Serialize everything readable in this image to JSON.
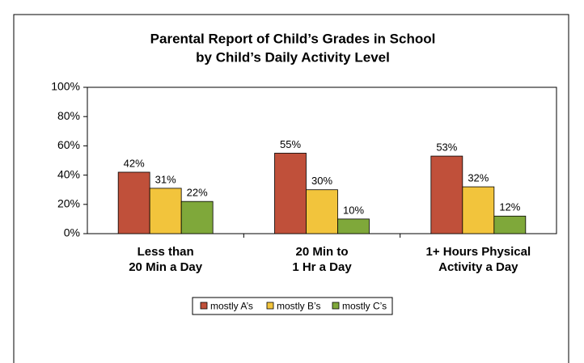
{
  "chart_data": {
    "type": "bar",
    "title": [
      "Parental Report of Child’s Grades in School",
      "by Child’s Daily Activity Level"
    ],
    "categories": [
      "Less than\n20 Min a Day",
      "20 Min to\n1 Hr a Day",
      "1+ Hours Physical\nActivity a Day"
    ],
    "series": [
      {
        "name": "mostly A’s",
        "color": "#c0503a",
        "values": [
          42,
          55,
          53
        ],
        "value_labels": [
          "42%",
          "55%",
          "53%"
        ]
      },
      {
        "name": "mostly B’s",
        "color": "#f2c43c",
        "values": [
          31,
          30,
          32
        ],
        "value_labels": [
          "31%",
          "30%",
          "32%"
        ]
      },
      {
        "name": "mostly C’s",
        "color": "#7fa83a",
        "values": [
          22,
          10,
          12
        ],
        "value_labels": [
          "22%",
          "10%",
          "12%"
        ]
      }
    ],
    "ylim": [
      0,
      100
    ],
    "yticks": [
      {
        "value": 0,
        "label": "0%"
      },
      {
        "value": 20,
        "label": "20%"
      },
      {
        "value": 40,
        "label": "40%"
      },
      {
        "value": 60,
        "label": "60%"
      },
      {
        "value": 80,
        "label": "80%"
      },
      {
        "value": 100,
        "label": "100%"
      }
    ],
    "legend": "bottom"
  }
}
